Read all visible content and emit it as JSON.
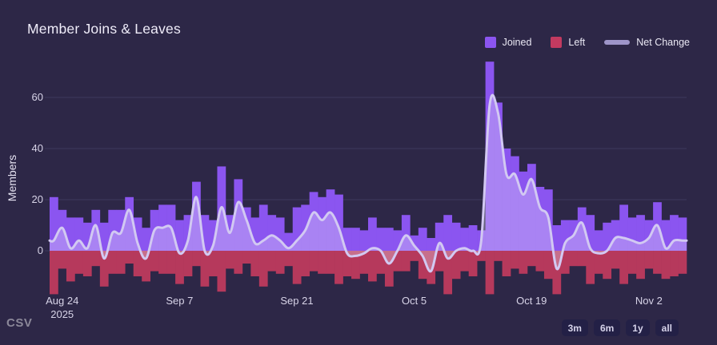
{
  "title": "Member Joins & Leaves",
  "csv_label": "CSV",
  "range_buttons": [
    "3m",
    "6m",
    "1y",
    "all"
  ],
  "legend": [
    {
      "label": "Joined",
      "swatch": "square",
      "color": "#8b55f0"
    },
    {
      "label": "Left",
      "swatch": "square",
      "color": "#c23a60"
    },
    {
      "label": "Net Change",
      "swatch": "line",
      "color": "#9e95c9"
    }
  ],
  "y_axis": {
    "label": "Members",
    "ticks": [
      0,
      20,
      40,
      60
    ]
  },
  "x_axis": {
    "ticks": [
      {
        "label": "Aug 24",
        "sub": "2025",
        "day": 1
      },
      {
        "label": "Sep 7",
        "sub": "",
        "day": 15
      },
      {
        "label": "Sep 21",
        "sub": "",
        "day": 29
      },
      {
        "label": "Oct 5",
        "sub": "",
        "day": 43
      },
      {
        "label": "Oct 19",
        "sub": "",
        "day": 57
      },
      {
        "label": "Nov 2",
        "sub": "",
        "day": 71
      }
    ]
  },
  "colors": {
    "background": "#2d2747",
    "joined_bar": "#8b55f0",
    "left_bar": "#b6395c",
    "net_line": "#d2c9f2",
    "net_fill": "rgba(240,237,253,0.30)",
    "gridline": "#3b3559"
  },
  "chart_data": {
    "type": "bar",
    "title": "Member Joins & Leaves",
    "xlabel": "",
    "ylabel": "Members",
    "ylim": [
      -18,
      75
    ],
    "yticks": [
      0,
      20,
      40,
      60
    ],
    "x_unit": "day",
    "x_range_labels": [
      "Aug 24 2025",
      "Sep 7",
      "Sep 21",
      "Oct 5",
      "Oct 19",
      "Nov 2"
    ],
    "days": 76,
    "grid": "horizontal",
    "legend_position": "top-right",
    "series": [
      {
        "name": "Joined",
        "display": "bar",
        "values": [
          21,
          16,
          13,
          13,
          11,
          16,
          11,
          16,
          16,
          21,
          13,
          9,
          16,
          18,
          18,
          12,
          14,
          27,
          14,
          12,
          33,
          14,
          28,
          17,
          13,
          18,
          14,
          13,
          7,
          17,
          18,
          23,
          21,
          24,
          22,
          9,
          9,
          8,
          13,
          9,
          9,
          8,
          14,
          6,
          9,
          5,
          11,
          14,
          11,
          9,
          10,
          8,
          74,
          58,
          40,
          37,
          31,
          34,
          25,
          24,
          10,
          12,
          12,
          17,
          14,
          8,
          11,
          12,
          18,
          13,
          14,
          12,
          19,
          12,
          14,
          13
        ]
      },
      {
        "name": "Left",
        "display": "bar",
        "values": [
          -17,
          -7,
          -12,
          -9,
          -10,
          -6,
          -14,
          -9,
          -9,
          -5,
          -10,
          -12,
          -8,
          -9,
          -9,
          -13,
          -10,
          -6,
          -14,
          -10,
          -16,
          -7,
          -9,
          -5,
          -10,
          -14,
          -8,
          -9,
          -6,
          -13,
          -10,
          -8,
          -9,
          -9,
          -13,
          -10,
          -11,
          -9,
          -12,
          -9,
          -14,
          -8,
          -8,
          -4,
          -11,
          -13,
          -8,
          -17,
          -11,
          -8,
          -10,
          -4,
          -17,
          -4,
          -10,
          -7,
          -9,
          -6,
          -8,
          -11,
          -17,
          -9,
          -6,
          -6,
          -13,
          -9,
          -11,
          -7,
          -13,
          -9,
          -11,
          -7,
          -9,
          -11,
          -10,
          -9
        ]
      },
      {
        "name": "Net Change",
        "display": "line",
        "derived": "Joined + Left",
        "values": [
          4,
          9,
          1,
          4,
          1,
          10,
          -3,
          7,
          7,
          16,
          3,
          -3,
          8,
          9,
          9,
          -1,
          4,
          21,
          0,
          2,
          17,
          7,
          19,
          12,
          3,
          4,
          6,
          -2,
          1,
          4,
          8,
          15,
          12,
          15,
          9,
          -1,
          -2,
          -1,
          1,
          0,
          -5,
          0,
          6,
          2,
          -2,
          -8,
          3,
          -3,
          0,
          1,
          0,
          4,
          57,
          54,
          30,
          30,
          22,
          28,
          17,
          13,
          -7,
          3,
          6,
          11,
          1,
          -1,
          0,
          5,
          5,
          4,
          3,
          5,
          10,
          1,
          4,
          4
        ]
      }
    ]
  }
}
